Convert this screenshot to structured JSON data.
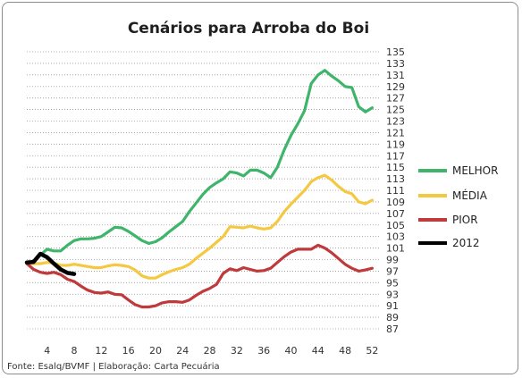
{
  "chart_data": {
    "type": "line",
    "title": "Cenários para Arroba do Boi",
    "xlabel": "",
    "ylabel": "",
    "xlim": [
      1,
      53
    ],
    "ylim": [
      87,
      135
    ],
    "x_ticks": [
      4,
      8,
      12,
      16,
      20,
      24,
      28,
      32,
      36,
      40,
      44,
      48,
      52
    ],
    "y_ticks": [
      87,
      89,
      91,
      93,
      95,
      97,
      99,
      101,
      103,
      105,
      107,
      109,
      111,
      113,
      115,
      117,
      119,
      121,
      123,
      125,
      127,
      129,
      131,
      133,
      135
    ],
    "grid": "horizontal dotted",
    "legend_position": "right",
    "series": [
      {
        "name": "MELHOR",
        "color": "#3fb46b",
        "x": [
          1,
          2,
          3,
          4,
          5,
          6,
          7,
          8,
          9,
          10,
          11,
          12,
          13,
          14,
          15,
          16,
          17,
          18,
          19,
          20,
          21,
          22,
          23,
          24,
          25,
          26,
          27,
          28,
          29,
          30,
          31,
          32,
          33,
          34,
          35,
          36,
          37,
          38,
          39,
          40,
          41,
          42,
          43,
          44,
          45,
          46,
          47,
          48,
          49,
          50,
          51,
          52
        ],
        "values": [
          98.3,
          98.8,
          99.8,
          100.8,
          100.5,
          100.5,
          101.5,
          102.3,
          102.6,
          102.6,
          102.7,
          103.0,
          103.8,
          104.6,
          104.5,
          103.9,
          103.1,
          102.3,
          101.8,
          102.1,
          102.8,
          103.8,
          104.7,
          105.6,
          107.3,
          108.8,
          110.3,
          111.5,
          112.3,
          113.0,
          114.2,
          114.0,
          113.5,
          114.5,
          114.5,
          114.0,
          113.2,
          115.0,
          118.0,
          120.5,
          122.5,
          124.8,
          129.5,
          131.0,
          131.8,
          130.8,
          130.0,
          129.0,
          128.8,
          125.5,
          124.6,
          125.3
        ]
      },
      {
        "name": "MÉDIA",
        "color": "#f5c842",
        "x": [
          1,
          2,
          3,
          4,
          5,
          6,
          7,
          8,
          9,
          10,
          11,
          12,
          13,
          14,
          15,
          16,
          17,
          18,
          19,
          20,
          21,
          22,
          23,
          24,
          25,
          26,
          27,
          28,
          29,
          30,
          31,
          32,
          33,
          34,
          35,
          36,
          37,
          38,
          39,
          40,
          41,
          42,
          43,
          44,
          45,
          46,
          47,
          48,
          49,
          50,
          51,
          52
        ],
        "values": [
          98.3,
          98.3,
          98.3,
          98.5,
          98.4,
          98.0,
          98.0,
          98.2,
          98.0,
          97.8,
          97.6,
          97.6,
          97.9,
          98.1,
          98.0,
          97.8,
          97.2,
          96.2,
          95.8,
          95.8,
          96.4,
          96.9,
          97.3,
          97.6,
          98.2,
          99.2,
          100.1,
          101.0,
          102.0,
          103.0,
          104.7,
          104.6,
          104.5,
          104.8,
          104.5,
          104.3,
          104.5,
          105.6,
          107.3,
          108.6,
          109.8,
          111.0,
          112.5,
          113.2,
          113.6,
          112.8,
          111.7,
          110.8,
          110.4,
          109.0,
          108.7,
          109.3
        ]
      },
      {
        "name": "PIOR",
        "color": "#c0393b",
        "x": [
          1,
          2,
          3,
          4,
          5,
          6,
          7,
          8,
          9,
          10,
          11,
          12,
          13,
          14,
          15,
          16,
          17,
          18,
          19,
          20,
          21,
          22,
          23,
          24,
          25,
          26,
          27,
          28,
          29,
          30,
          31,
          32,
          33,
          34,
          35,
          36,
          37,
          38,
          39,
          40,
          41,
          42,
          43,
          44,
          45,
          46,
          47,
          48,
          49,
          50,
          51,
          52
        ],
        "values": [
          98.3,
          97.3,
          96.8,
          96.6,
          96.8,
          96.4,
          95.6,
          95.2,
          94.4,
          93.7,
          93.3,
          93.2,
          93.4,
          93.0,
          92.9,
          92.0,
          91.2,
          90.8,
          90.8,
          91.0,
          91.5,
          91.7,
          91.7,
          91.6,
          92.0,
          92.8,
          93.5,
          94.0,
          94.7,
          96.6,
          97.4,
          97.1,
          97.6,
          97.3,
          97.0,
          97.1,
          97.5,
          98.5,
          99.5,
          100.3,
          100.8,
          100.8,
          100.8,
          101.5,
          101.0,
          100.2,
          99.2,
          98.2,
          97.5,
          97.0,
          97.2,
          97.5
        ]
      },
      {
        "name": "2012",
        "color": "#000000",
        "x": [
          1,
          2,
          3,
          4,
          5,
          6,
          7,
          8
        ],
        "values": [
          98.5,
          98.6,
          100.0,
          99.4,
          98.3,
          97.3,
          96.7,
          96.5
        ]
      }
    ],
    "source": "Fonte: Esalq/BVMF | Elaboração: Carta Pecuária"
  }
}
